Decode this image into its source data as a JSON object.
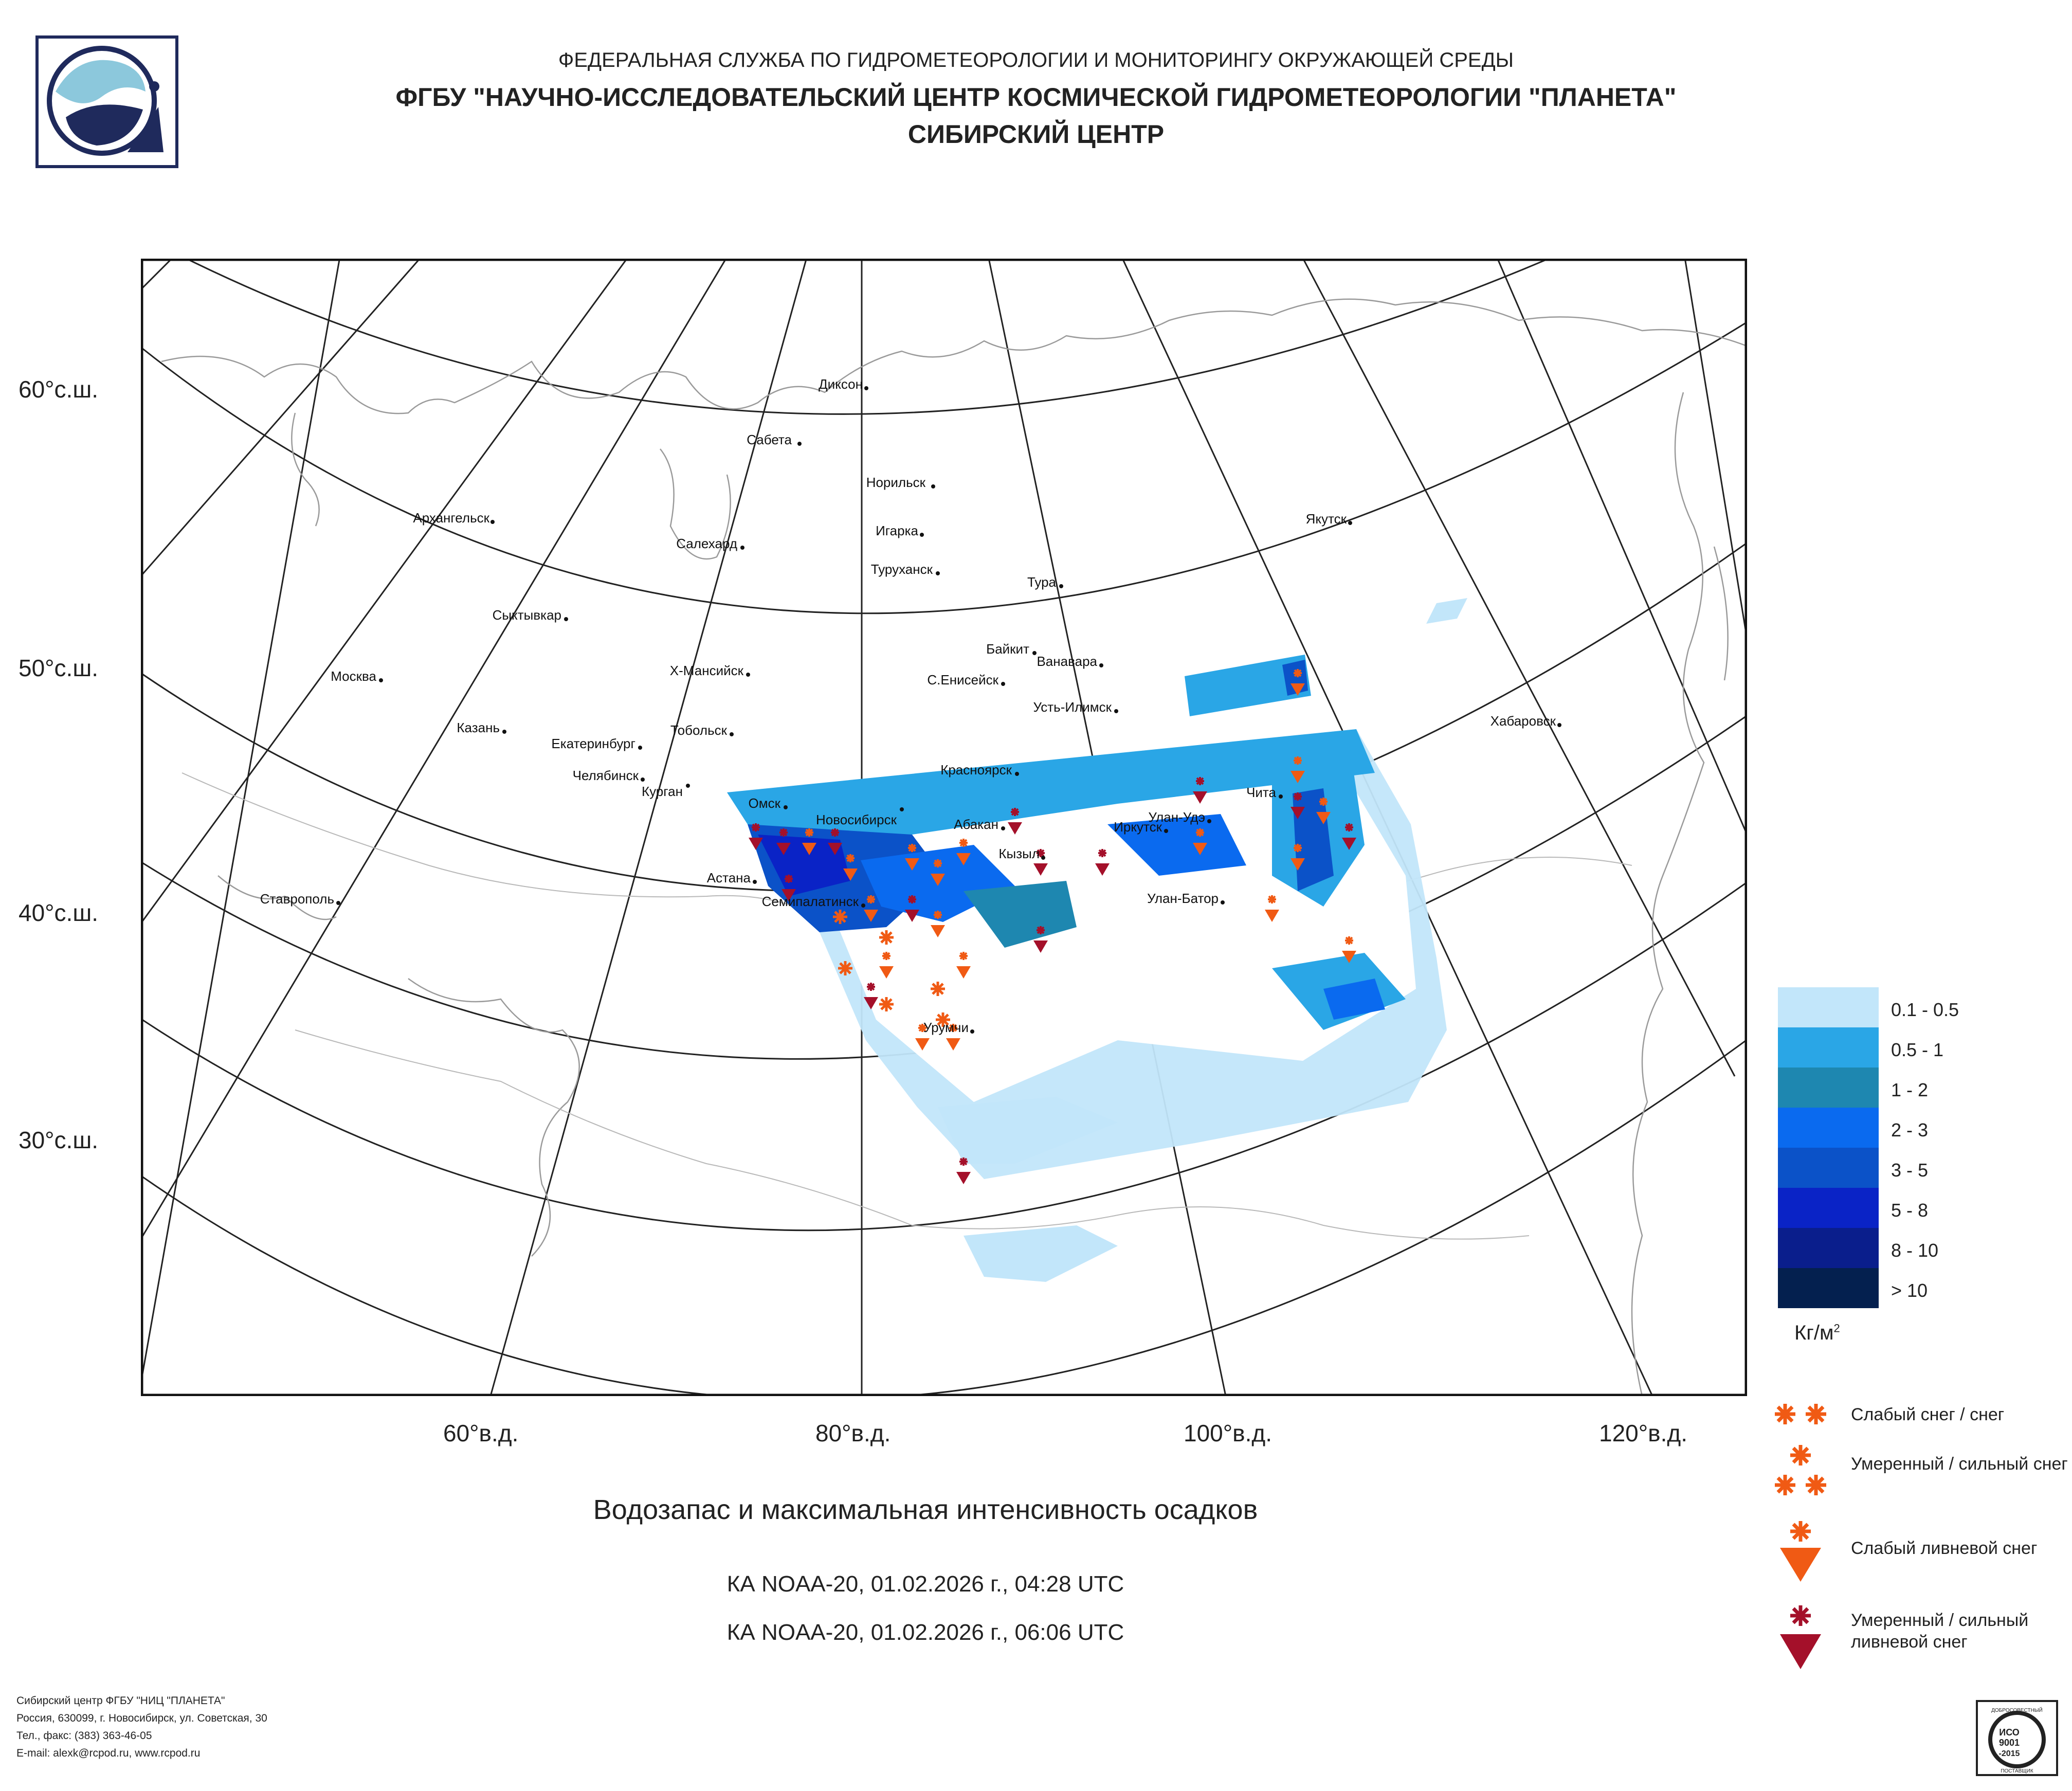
{
  "header": {
    "line1": "ФЕДЕРАЛЬНАЯ СЛУЖБА ПО ГИДРОМЕТЕОРОЛОГИИ И МОНИТОРИНГУ ОКРУЖАЮЩЕЙ СРЕДЫ",
    "line2": "ФГБУ \"НАУЧНО-ИССЛЕДОВАТЕЛЬСКИЙ ЦЕНТР КОСМИЧЕСКОЙ ГИДРОМЕТЕОРОЛОГИИ \"ПЛАНЕТА\"",
    "line3": "СИБИРСКИЙ ЦЕНТР"
  },
  "map": {
    "lat_labels": [
      "60°с.ш.",
      "50°с.ш.",
      "40°с.ш.",
      "30°с.ш."
    ],
    "lon_labels": [
      "60°в.д.",
      "80°в.д.",
      "100°в.д.",
      "120°в.д."
    ],
    "cities": [
      "Диксон",
      "Сабета",
      "Норильск",
      "Архангельск",
      "Салехард",
      "Игарка",
      "Туруханск",
      "Якутск",
      "Тура",
      "Сыктывкар",
      "Байкит",
      "Ванавара",
      "Москва",
      "Х-Мансийск",
      "С.Енисейск",
      "Усть-Илимск",
      "Хабаровск",
      "Казань",
      "Тобольск",
      "Екатеринбург",
      "Челябинск",
      "Курган",
      "Красноярск",
      "Омск",
      "Новосибирск",
      "Абакан",
      "Чита",
      "Улан-Удэ",
      "Иркутск",
      "Кызыл",
      "Астана",
      "Семипалатинск",
      "Улан-Батор",
      "Ставрополь",
      "Урумчи"
    ]
  },
  "legend": {
    "items": [
      {
        "label": "0.1 - 0.5",
        "color": "#c2e6fa"
      },
      {
        "label": "0.5 - 1",
        "color": "#2aa6e6"
      },
      {
        "label": "1 - 2",
        "color": "#1e87b0"
      },
      {
        "label": "2 - 3",
        "color": "#0a6aef"
      },
      {
        "label": "3 - 5",
        "color": "#0b52c8"
      },
      {
        "label": "5 - 8",
        "color": "#0a23c6"
      },
      {
        "label": "8 - 10",
        "color": "#0a1e8c"
      },
      {
        "label": "> 10",
        "color": "#04204f"
      }
    ],
    "units_text": "Кг/м",
    "units_sup": "2"
  },
  "symbols": {
    "light_snow": "Слабый снег / снег",
    "moderate_snow": "Умеренный / сильный снег",
    "light_shower": "Слабый ливневой снег",
    "heavy_shower": "Умеренный / сильный ливневой снег",
    "colors": {
      "orange": "#f05a14",
      "darkred": "#a4102a"
    }
  },
  "title": "Водозапас и максимальная интенсивность осадков",
  "subtitles": [
    "КА NOAA-20, 01.02.2026 г., 04:28 UTC",
    "КА NOAA-20, 01.02.2026 г., 06:06 UTC"
  ],
  "footer": [
    "Сибирский центр ФГБУ \"НИЦ \"ПЛАНЕТА\"",
    "Россия, 630099, г. Новосибирск, ул. Советская, 30",
    "Тел., факс: (383) 363-46-05",
    "E-mail: alexk@rcpod.ru, www.rcpod.ru"
  ],
  "iso_badge": {
    "top": "ДОБРОСОВЕСТНЫЙ",
    "line1": "ИСО",
    "line2": "9001",
    "line3": "-2015",
    "bottom": "ПОСТАВЩИК"
  }
}
